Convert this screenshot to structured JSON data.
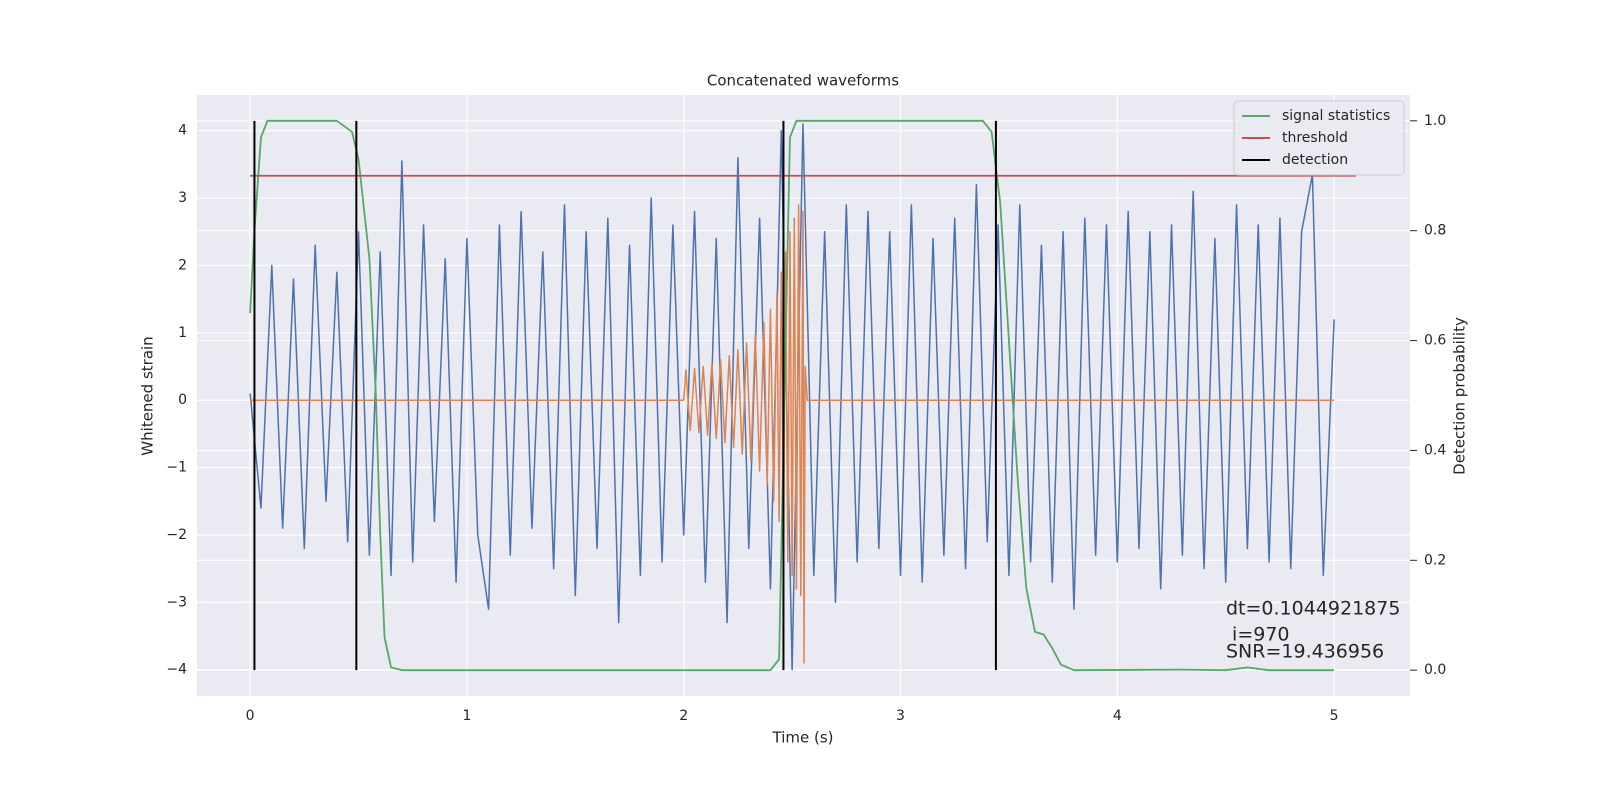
{
  "chart_data": {
    "type": "line",
    "title": "Concatenated waveforms",
    "xlabel": "Time (s)",
    "ylabel": "Whitened strain",
    "y2label": "Detection probability",
    "xlim": [
      -0.245,
      5.35
    ],
    "ylim": [
      -4.39,
      4.53
    ],
    "y2lim": [
      -0.047,
      1.047
    ],
    "xticks": [
      0,
      1,
      2,
      3,
      4,
      5
    ],
    "yticks": [
      {
        "value": -4,
        "label": "−4"
      },
      {
        "value": -3,
        "label": "−3"
      },
      {
        "value": -2,
        "label": "−2"
      },
      {
        "value": -1,
        "label": "−1"
      },
      0,
      1,
      2,
      3,
      4
    ],
    "y2ticks": [
      {
        "value": 0,
        "label": "0.0"
      },
      0.2,
      0.4,
      0.6,
      0.8,
      {
        "value": 1,
        "label": "1.0"
      }
    ],
    "grid": true,
    "legend": "upper right",
    "series": [
      {
        "color": "#4c72b0",
        "x": [
          0,
          0.05,
          0.1,
          0.15,
          0.2,
          0.25,
          0.3,
          0.35,
          0.4,
          0.45,
          0.5,
          0.55,
          0.6,
          0.65,
          0.7,
          0.75,
          0.8,
          0.85,
          0.9,
          0.95,
          1,
          1.05,
          1.1,
          1.15,
          1.2,
          1.25,
          1.3,
          1.35,
          1.4,
          1.45,
          1.5,
          1.55,
          1.6,
          1.65,
          1.7,
          1.75,
          1.8,
          1.85,
          1.9,
          1.95,
          2,
          2.05,
          2.1,
          2.15,
          2.2,
          2.25,
          2.3,
          2.35,
          2.4,
          2.45,
          2.5,
          2.55,
          2.6,
          2.65,
          2.7,
          2.75,
          2.8,
          2.85,
          2.9,
          2.95,
          3,
          3.05,
          3.1,
          3.15,
          3.2,
          3.25,
          3.3,
          3.35,
          3.4,
          3.45,
          3.5,
          3.55,
          3.6,
          3.65,
          3.7,
          3.75,
          3.8,
          3.85,
          3.9,
          3.95,
          4,
          4.05,
          4.1,
          4.15,
          4.2,
          4.25,
          4.3,
          4.35,
          4.4,
          4.45,
          4.5,
          4.55,
          4.6,
          4.65,
          4.7,
          4.75,
          4.8,
          4.85,
          4.9,
          4.95,
          5
        ],
        "values": [
          0.1,
          -1.6,
          2.0,
          -1.9,
          1.8,
          -2.2,
          2.3,
          -1.5,
          1.9,
          -2.1,
          2.5,
          -2.3,
          2.2,
          -2.6,
          3.55,
          -2.4,
          2.6,
          -1.8,
          2.1,
          -2.7,
          2.4,
          -2.0,
          -3.1,
          2.6,
          -2.3,
          2.8,
          -1.9,
          2.2,
          -2.5,
          2.9,
          -2.9,
          2.5,
          -2.2,
          2.7,
          -3.3,
          2.3,
          -2.6,
          3.0,
          -2.4,
          2.6,
          -2.0,
          2.8,
          -2.7,
          2.4,
          -3.3,
          3.6,
          -2.2,
          2.7,
          -2.8,
          4.0,
          -4.0,
          4.1,
          -2.6,
          2.5,
          -3.0,
          2.9,
          -2.4,
          2.8,
          -2.2,
          2.5,
          -2.6,
          2.9,
          -2.7,
          2.4,
          -2.3,
          2.7,
          -2.5,
          3.2,
          -2.1,
          2.6,
          -2.6,
          2.9,
          -2.4,
          2.3,
          -2.7,
          2.5,
          -3.1,
          2.7,
          -2.3,
          2.6,
          -2.4,
          2.8,
          -2.2,
          2.5,
          -2.8,
          2.6,
          -2.3,
          3.1,
          -2.5,
          2.4,
          -2.7,
          2.9,
          -2.2,
          2.6,
          -2.4,
          2.7,
          -2.5,
          2.5,
          3.35,
          -2.6,
          1.2
        ]
      },
      {
        "color": "#dd8452",
        "x": [
          0,
          2.0,
          2.01,
          2.03,
          2.05,
          2.07,
          2.09,
          2.11,
          2.13,
          2.15,
          2.17,
          2.19,
          2.21,
          2.23,
          2.25,
          2.27,
          2.29,
          2.31,
          2.33,
          2.35,
          2.37,
          2.385,
          2.4,
          2.415,
          2.43,
          2.44,
          2.45,
          2.46,
          2.47,
          2.48,
          2.49,
          2.5,
          2.51,
          2.52,
          2.53,
          2.54,
          2.55,
          2.555,
          2.56,
          2.57,
          5.0
        ],
        "values": [
          0,
          0,
          0.45,
          -0.45,
          0.47,
          -0.48,
          0.5,
          -0.52,
          0.55,
          -0.57,
          0.6,
          -0.63,
          0.66,
          -0.7,
          0.75,
          -0.8,
          0.85,
          -0.9,
          0.97,
          -1.05,
          1.15,
          -1.25,
          1.35,
          -1.5,
          1.6,
          -1.8,
          1.9,
          -2.1,
          2.2,
          -2.4,
          2.5,
          -2.6,
          2.7,
          -2.8,
          2.9,
          -2.9,
          2.8,
          -3.9,
          0.5,
          0,
          0
        ]
      },
      {
        "name": "signal statistics",
        "color": "#55a868",
        "axis": "y2",
        "x": [
          0,
          0.02,
          0.05,
          0.08,
          0.4,
          0.47,
          0.5,
          0.55,
          0.58,
          0.6,
          0.62,
          0.65,
          0.7,
          2.4,
          2.44,
          2.47,
          2.49,
          2.52,
          3.38,
          3.42,
          3.46,
          3.5,
          3.54,
          3.58,
          3.62,
          3.66,
          3.7,
          3.74,
          3.8,
          4.3,
          4.5,
          4.6,
          4.7,
          5.0
        ],
        "values": [
          0.65,
          0.8,
          0.97,
          1.0,
          1.0,
          0.98,
          0.93,
          0.75,
          0.5,
          0.25,
          0.06,
          0.005,
          0,
          0,
          0.02,
          0.6,
          0.97,
          1.0,
          1.0,
          0.98,
          0.85,
          0.6,
          0.35,
          0.15,
          0.07,
          0.065,
          0.04,
          0.01,
          0,
          0.001,
          0,
          0.005,
          0,
          0
        ]
      },
      {
        "name": "threshold",
        "color": "#c44e52",
        "axis": "y2",
        "x": [
          0,
          5.1
        ],
        "values": [
          0.9,
          0.9
        ]
      },
      {
        "name": "detection",
        "color": "#000000",
        "axis": "y2",
        "style": "vline",
        "x": [
          0.02,
          0.49,
          2.46,
          3.44
        ],
        "ymin": 0,
        "ymax": 1
      }
    ],
    "annotation": [
      "dt=0.1044921875",
      " i=970",
      "SNR=19.436956"
    ]
  }
}
